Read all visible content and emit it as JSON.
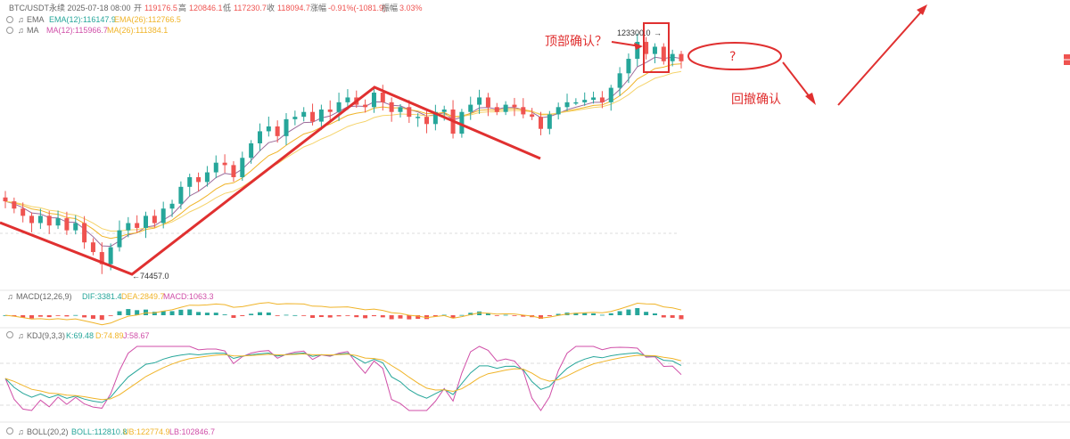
{
  "header": {
    "symbol_line": "BTC/USDT永续 2025-07-18 08:00",
    "open_label": "开",
    "open": "119176.5",
    "high_label": "高",
    "high": "120846.1",
    "low_label": "低",
    "low": "117230.7",
    "close_label": "收",
    "close": "118094.7",
    "change_label": "涨幅",
    "change": "-0.91%(-1081.9)",
    "amp_label": "振幅",
    "amp": "3.03%"
  },
  "indicators": {
    "ema_name": "EMA",
    "ema12": "EMA(12):116147.9",
    "ema26": "EMA(26):112766.5",
    "ma_name": "MA",
    "ma12": "MA(12):115966.7",
    "ma26": "MA(26):111384.1",
    "macd_name": "MACD(12,26,9)",
    "dif": "DIF:3381.4",
    "dea": "DEA:2849.7",
    "macd": "MACD:1063.3",
    "kdj_name": "KDJ(9,3,3)",
    "k": "K:69.48",
    "d": "D:74.89",
    "j": "J:58.67",
    "boll_name": "BOLL(20,2)",
    "boll": "BOLL:112810.8",
    "ub": "UB:122774.9",
    "lb": "LB:102846.7"
  },
  "annotations": {
    "high_price": "123300.0",
    "low_price": "74457.0",
    "top_question": "顶部确认？",
    "circle_text": "?",
    "pullback": "回撤确认"
  },
  "colors": {
    "up": "#26a69a",
    "down": "#ef5350",
    "annotation": "#e03030",
    "ema12": "#9c6b9a",
    "ema26": "#f0b429",
    "k": "#26a69a",
    "d": "#f0b429",
    "j": "#d04fa8"
  },
  "chart_data": {
    "type": "candlestick",
    "points": [
      89000,
      87500,
      86000,
      84500,
      86000,
      84000,
      85500,
      83000,
      84500,
      80500,
      78500,
      76000,
      79500,
      83000,
      84500,
      83500,
      86000,
      84500,
      87500,
      88500,
      92000,
      94000,
      93000,
      95000,
      97000,
      96500,
      94000,
      98000,
      101000,
      103500,
      104500,
      102500,
      106000,
      106500,
      107500,
      105500,
      108000,
      107500,
      109500,
      110500,
      109000,
      108500,
      111500,
      109500,
      107500,
      108500,
      106500,
      106500,
      105000,
      107500,
      108000,
      103000,
      107500,
      109000,
      110500,
      108500,
      107500,
      109000,
      108500,
      107000,
      106500,
      104000,
      107000,
      108500,
      109500,
      109500,
      110000,
      110500,
      109500,
      112500,
      115500,
      118500,
      122000,
      119500,
      121000,
      118000,
      119500,
      118000
    ]
  }
}
